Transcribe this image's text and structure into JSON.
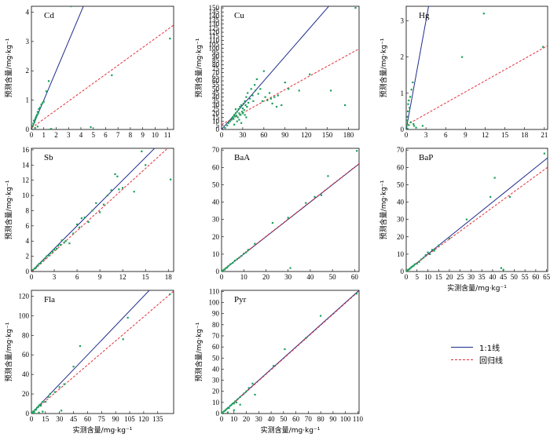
{
  "legend": {
    "line_label": "1:1线",
    "reg_label": "回归线",
    "line_color": "#1f2d8a",
    "reg_color": "#e0303a",
    "point_color": "#1aa05a"
  },
  "chart_data": [
    {
      "type": "scatter",
      "title": "Cd",
      "xlabel": "",
      "ylabel": "预测含量/mg·kg⁻¹",
      "xlim": [
        0,
        11.5
      ],
      "ylim": [
        0,
        4.2
      ],
      "xticks": [
        0,
        1,
        2,
        3,
        4,
        5,
        6,
        7,
        8,
        9,
        10,
        11
      ],
      "yticks": [
        0,
        1,
        2,
        3,
        4
      ],
      "reg": [
        0.05,
        0.305
      ],
      "x": [
        0.1,
        0.15,
        0.2,
        0.25,
        0.3,
        0.35,
        0.4,
        0.45,
        0.5,
        0.55,
        0.6,
        0.7,
        0.8,
        0.9,
        1.0,
        1.2,
        1.4,
        0.3,
        0.5,
        1.5,
        1.6,
        3.2,
        4.8,
        5.0,
        6.5,
        11.2
      ],
      "y": [
        0.12,
        0.2,
        0.3,
        0.25,
        0.35,
        0.4,
        0.45,
        0.5,
        0.6,
        0.55,
        0.7,
        0.75,
        0.85,
        0.9,
        0.95,
        1.3,
        1.65,
        0.05,
        0.1,
        0.0,
        0.02,
        4.2,
        0.08,
        0.0,
        1.85,
        3.1
      ]
    },
    {
      "type": "scatter",
      "title": "Cu",
      "xlabel": "",
      "ylabel": "预测含量/mg·kg⁻¹",
      "xlim": [
        0,
        195
      ],
      "ylim": [
        0,
        152
      ],
      "xticks": [
        0,
        30,
        60,
        90,
        120,
        150,
        180
      ],
      "yticks": [
        0,
        5,
        10,
        15,
        20,
        25,
        30,
        35,
        40,
        45,
        50,
        55,
        60,
        65,
        70,
        75,
        80,
        85,
        90,
        95,
        100,
        105,
        110,
        115,
        120,
        125,
        130,
        135,
        140,
        145,
        150
      ],
      "reg": [
        6,
        0.48
      ],
      "x": [
        5,
        8,
        10,
        12,
        14,
        15,
        16,
        17,
        18,
        19,
        20,
        21,
        22,
        23,
        24,
        25,
        26,
        27,
        28,
        29,
        30,
        31,
        32,
        33,
        34,
        35,
        36,
        37,
        38,
        40,
        42,
        44,
        45,
        47,
        48,
        50,
        52,
        55,
        58,
        60,
        62,
        65,
        68,
        70,
        72,
        75,
        78,
        80,
        85,
        90,
        95,
        110,
        125,
        155,
        175,
        190,
        20,
        25,
        30,
        35,
        22,
        28,
        33,
        18
      ],
      "y": [
        2,
        5,
        8,
        10,
        12,
        14,
        15,
        13,
        18,
        16,
        20,
        17,
        22,
        15,
        25,
        20,
        28,
        18,
        30,
        22,
        26,
        32,
        24,
        35,
        30,
        40,
        28,
        45,
        33,
        38,
        50,
        42,
        35,
        55,
        48,
        62,
        44,
        50,
        35,
        72,
        40,
        36,
        45,
        38,
        32,
        40,
        28,
        42,
        30,
        58,
        50,
        48,
        68,
        48,
        30,
        150,
        25,
        12,
        20,
        15,
        10,
        8,
        18,
        6
      ]
    },
    {
      "type": "scatter",
      "title": "Hg",
      "xlabel": "",
      "ylabel": "预测含量/mg·kg⁻¹",
      "xlim": [
        0,
        21.5
      ],
      "ylim": [
        0,
        3.4
      ],
      "xticks": [
        0,
        3,
        6,
        9,
        12,
        15,
        18,
        21
      ],
      "yticks": [
        0,
        1,
        2,
        3
      ],
      "reg": [
        0.12,
        0.102
      ],
      "x": [
        0.05,
        0.1,
        0.15,
        0.2,
        0.25,
        0.3,
        0.4,
        0.5,
        0.6,
        0.8,
        1.0,
        1.2,
        1.5,
        0.2,
        0.4,
        0.7,
        1.1,
        2.5,
        8.5,
        11.8,
        20.8
      ],
      "y": [
        0.08,
        0.15,
        0.25,
        0.35,
        0.5,
        0.7,
        0.8,
        0.6,
        0.9,
        1.1,
        1.3,
        0.1,
        0.05,
        0.02,
        0.12,
        0.2,
        0.15,
        0.1,
        2.0,
        3.2,
        2.28
      ]
    },
    {
      "type": "scatter",
      "title": "Sb",
      "xlabel": "",
      "ylabel": "预测含量/mg·kg⁻¹",
      "xlim": [
        0,
        18.7
      ],
      "ylim": [
        0,
        16.2
      ],
      "xticks": [
        0,
        3,
        6,
        9,
        12,
        15,
        18
      ],
      "yticks": [
        0,
        2,
        4,
        6,
        8,
        10,
        12,
        14,
        16
      ],
      "reg": [
        -0.1,
        0.91
      ],
      "x": [
        0.2,
        0.4,
        0.6,
        0.8,
        1.0,
        1.2,
        1.5,
        1.8,
        2.0,
        2.3,
        2.5,
        2.8,
        3.0,
        3.3,
        3.5,
        3.8,
        4.0,
        4.3,
        4.5,
        5.0,
        5.5,
        6.0,
        6.3,
        6.6,
        7.0,
        7.5,
        8.0,
        8.5,
        9.0,
        9.5,
        10.0,
        10.5,
        11.0,
        11.3,
        11.5,
        12.0,
        13.5,
        14.5,
        15.0,
        18.3
      ],
      "y": [
        0.2,
        0.4,
        0.5,
        0.8,
        1.0,
        1.1,
        1.4,
        1.7,
        2.0,
        2.1,
        2.4,
        2.6,
        2.9,
        3.0,
        3.4,
        3.5,
        4.1,
        3.8,
        4.0,
        3.7,
        5.0,
        6.2,
        5.8,
        7.0,
        7.1,
        6.5,
        8.0,
        9.0,
        7.8,
        8.8,
        10.0,
        10.7,
        12.8,
        12.5,
        10.8,
        11.0,
        10.5,
        15.8,
        14.0,
        12.1
      ]
    },
    {
      "type": "scatter",
      "title": "BaA",
      "xlabel": "",
      "ylabel": "",
      "xlim": [
        0,
        62
      ],
      "ylim": [
        0,
        71
      ],
      "xticks": [
        0,
        10,
        20,
        30,
        40,
        50,
        60
      ],
      "yticks": [
        0,
        10,
        20,
        30,
        40,
        50,
        60,
        70
      ],
      "reg": [
        0.2,
        1.0
      ],
      "x": [
        0.2,
        0.5,
        1,
        1.5,
        2,
        2.5,
        3,
        4,
        5,
        6,
        7,
        8,
        9,
        10,
        11,
        12,
        15,
        23,
        30,
        31,
        38,
        42,
        45,
        48,
        61
      ],
      "y": [
        0.3,
        0.4,
        1,
        1.2,
        2,
        2.3,
        3.1,
        4.2,
        5,
        6.3,
        7.1,
        8,
        9,
        10.3,
        11,
        12.5,
        16,
        28,
        31,
        2,
        39.5,
        43,
        44,
        55,
        69.5
      ]
    },
    {
      "type": "scatter",
      "title": "BaP",
      "xlabel": "实测含量/mg·kg⁻¹",
      "ylabel": "预测含量/mg·kg⁻¹",
      "xlim": [
        0,
        65.5
      ],
      "ylim": [
        0,
        71
      ],
      "xticks": [
        0,
        5,
        10,
        15,
        20,
        25,
        30,
        35,
        40,
        45,
        50,
        55,
        60,
        65
      ],
      "yticks": [
        0,
        10,
        20,
        30,
        40,
        50,
        60,
        70
      ],
      "reg": [
        0.5,
        0.91
      ],
      "x": [
        0.3,
        0.6,
        1,
        1.5,
        2,
        2.5,
        3,
        3.5,
        4,
        5,
        6,
        7,
        8,
        9,
        10,
        11,
        12,
        13,
        15,
        20,
        28,
        39,
        41,
        44,
        45,
        48,
        64
      ],
      "y": [
        0.4,
        0.5,
        1.1,
        1.3,
        2,
        2.6,
        3,
        3.4,
        4.2,
        4.5,
        5.5,
        7,
        8,
        9.5,
        11,
        10,
        12.5,
        12,
        15,
        19,
        30,
        43,
        54,
        2,
        1,
        43,
        68
      ]
    },
    {
      "type": "scatter",
      "title": "Fla",
      "xlabel": "实测含量/mg·kg⁻¹",
      "ylabel": "预测含量/mg·kg⁻¹",
      "xlim": [
        0,
        152
      ],
      "ylim": [
        0,
        126
      ],
      "xticks": [
        0,
        15,
        30,
        45,
        60,
        75,
        90,
        105,
        120,
        135
      ],
      "yticks": [
        0,
        20,
        40,
        60,
        80,
        100,
        120
      ],
      "reg": [
        0.5,
        0.82
      ],
      "x": [
        0.5,
        1,
        2,
        3,
        4,
        5,
        6,
        7,
        8,
        9,
        10,
        12,
        15,
        18,
        20,
        25,
        30,
        32,
        35,
        45,
        52,
        98,
        103,
        148,
        3,
        8,
        12
      ],
      "y": [
        0.5,
        1,
        2,
        2.5,
        4,
        4,
        6,
        6.5,
        8,
        9,
        8,
        12,
        12,
        17,
        20,
        22,
        27,
        3,
        30,
        48,
        69,
        76,
        98,
        122,
        0.5,
        1,
        2
      ]
    },
    {
      "type": "scatter",
      "title": "Pyr",
      "xlabel": "实测含量/mg·kg⁻¹",
      "ylabel": "预测含量/mg·kg⁻¹",
      "xlim": [
        0,
        111
      ],
      "ylim": [
        0,
        111
      ],
      "xticks": [
        0,
        10,
        20,
        30,
        40,
        50,
        60,
        70,
        80,
        90,
        100,
        110
      ],
      "yticks": [
        0,
        10,
        20,
        30,
        40,
        50,
        60,
        70,
        80,
        90,
        100,
        110
      ],
      "reg": [
        -0.5,
        1.0
      ],
      "x": [
        0.5,
        1,
        2,
        3,
        4,
        5,
        6,
        7,
        8,
        9,
        10,
        11,
        12,
        13,
        15,
        18,
        20,
        22,
        25,
        27,
        42,
        51,
        68,
        80,
        109,
        5,
        10,
        15
      ],
      "y": [
        0.5,
        1,
        2,
        3,
        4,
        5,
        5,
        7,
        8,
        9,
        9,
        11,
        10,
        13,
        15,
        18,
        20,
        23,
        27,
        17,
        43,
        58,
        68,
        88,
        108,
        1,
        3,
        8
      ]
    }
  ]
}
